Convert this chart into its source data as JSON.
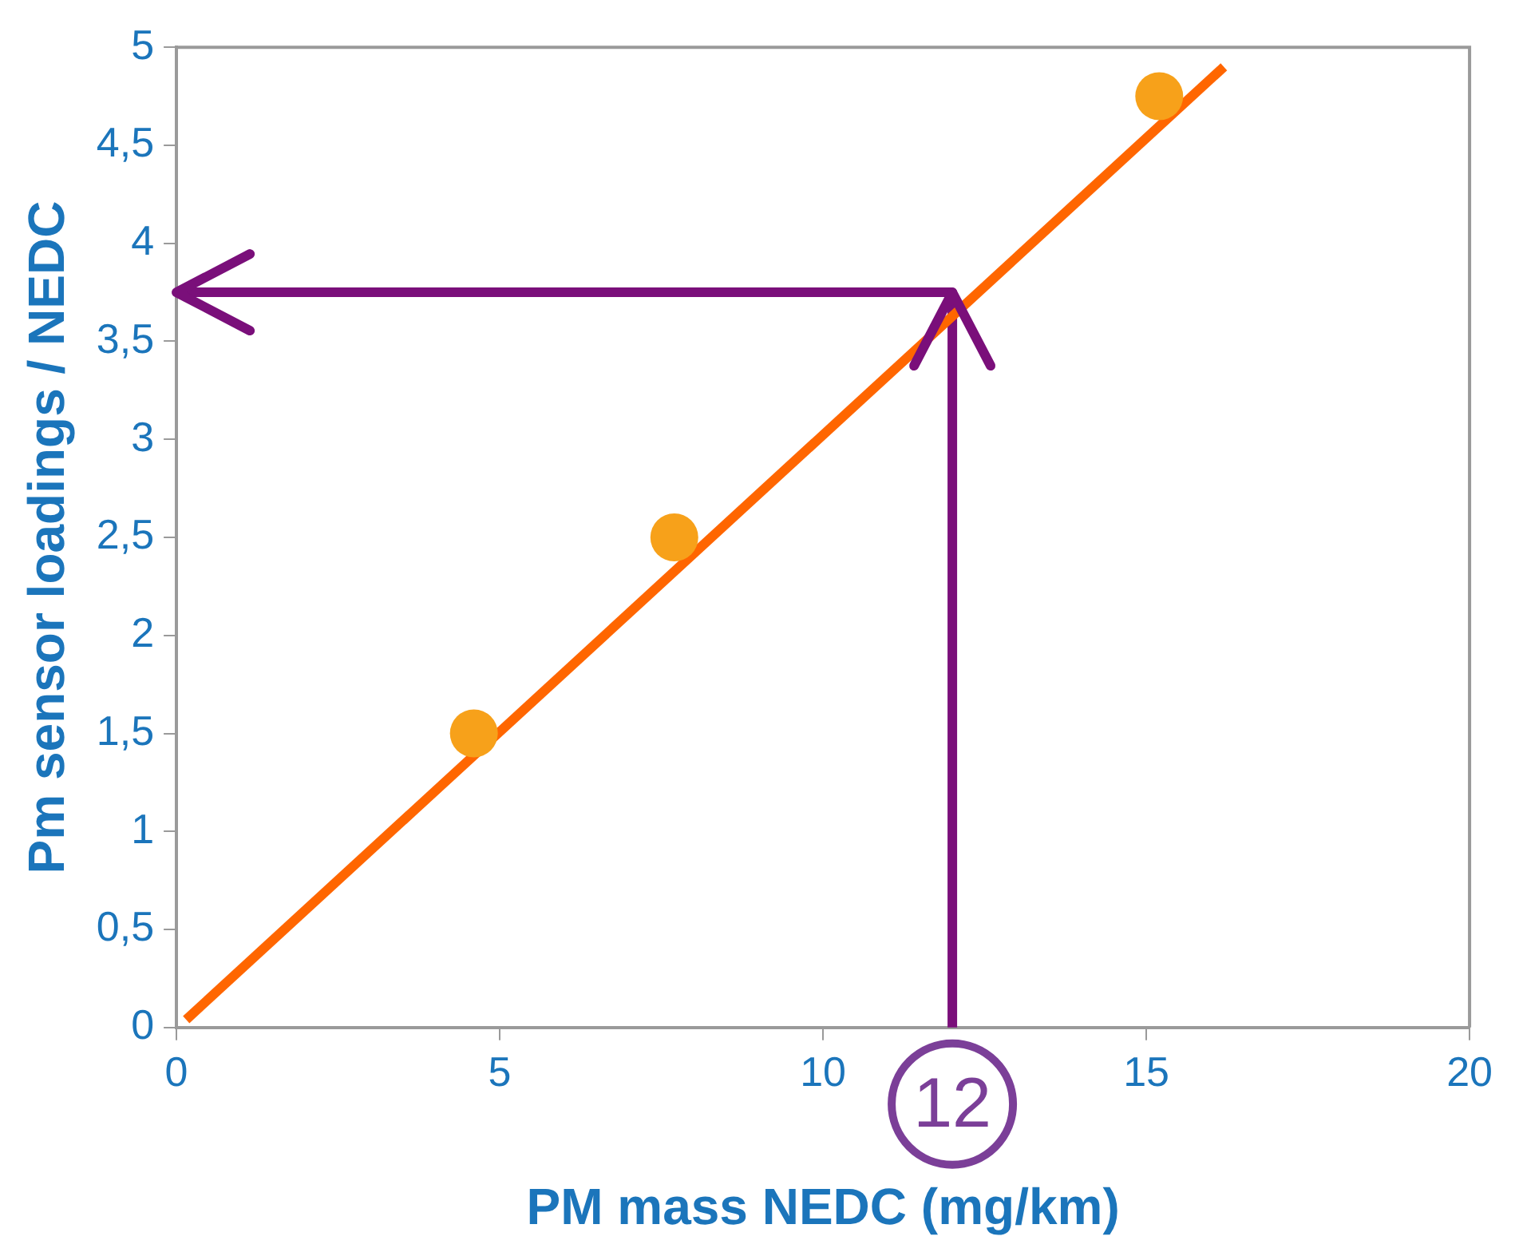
{
  "chart_data": {
    "type": "scatter",
    "xlabel": "PM mass NEDC (mg/km)",
    "ylabel": "Pm sensor loadings / NEDC",
    "xlim": [
      0,
      20
    ],
    "xticks": [
      0,
      5,
      10,
      15,
      20
    ],
    "ylim": [
      0,
      5
    ],
    "yticks": [
      0,
      {
        "value": 0.5,
        "label": "0,5"
      },
      1,
      {
        "value": 1.5,
        "label": "1,5"
      },
      2,
      {
        "value": 2.5,
        "label": "2,5"
      },
      3,
      {
        "value": 3.5,
        "label": "3,5"
      },
      4,
      {
        "value": 4.5,
        "label": "4,5"
      },
      5
    ],
    "grid": false,
    "legend": false,
    "series": [
      {
        "color": "#f7a11a",
        "marker": "circle",
        "x": [
          4.6,
          7.7,
          15.2
        ],
        "values": [
          1.5,
          2.5,
          4.75
        ]
      },
      {
        "type": "line",
        "color": "#ff6600",
        "marker": "none",
        "x": [
          0.15,
          16.2
        ],
        "values": [
          0.04,
          4.9
        ]
      },
      {
        "type": "line",
        "color": "#7a0f7a",
        "marker": "none",
        "x": [
          0,
          12,
          12
        ],
        "values": [
          3.75,
          3.75,
          0
        ]
      }
    ],
    "annotations": [
      "12"
    ]
  }
}
